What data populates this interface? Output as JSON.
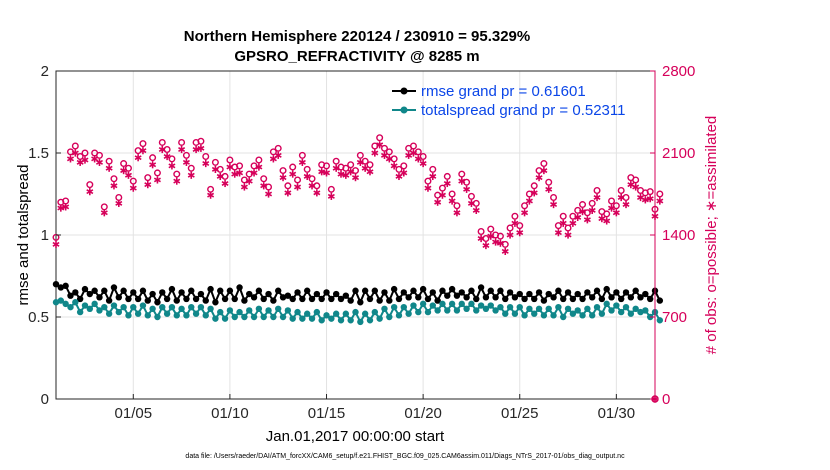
{
  "chart_data": {
    "type": "line",
    "title": "Northern Hemisphere 220124 / 230910 = 95.329%",
    "subtitle": "GPSRO_REFRACTIVITY @ 8285 m",
    "xlabel": "Jan.01,2017 00:00:00 start",
    "ylabel": "rmse and totalspread",
    "y2label": "# of obs: o=possible; ∗=assimilated",
    "xlim": [
      1,
      32
    ],
    "ylim": [
      0,
      2
    ],
    "y2lim": [
      0,
      2800
    ],
    "x_ticks": [
      5,
      10,
      15,
      20,
      25,
      30
    ],
    "x_tick_labels": [
      "01/05",
      "01/10",
      "01/15",
      "01/20",
      "01/25",
      "01/30"
    ],
    "y_ticks": [
      0,
      0.5,
      1,
      1.5,
      2
    ],
    "y_tick_labels": [
      "0",
      "0.5",
      "1",
      "1.5",
      "2"
    ],
    "y2_ticks": [
      0,
      700,
      1400,
      2100,
      2800
    ],
    "y2_tick_labels": [
      "0",
      "700",
      "1400",
      "2100",
      "2800"
    ],
    "x_start": 1.0,
    "x_step": 0.25,
    "series": [
      {
        "name": "rmse grand pr = 0.61601",
        "axis": "left",
        "color": "#000000",
        "marker": "filled-circle",
        "values": [
          0.7,
          0.68,
          0.69,
          0.63,
          0.65,
          0.61,
          0.67,
          0.64,
          0.66,
          0.62,
          0.66,
          0.6,
          0.68,
          0.62,
          0.66,
          0.61,
          0.65,
          0.61,
          0.66,
          0.6,
          0.64,
          0.59,
          0.65,
          0.61,
          0.67,
          0.6,
          0.65,
          0.61,
          0.66,
          0.61,
          0.64,
          0.6,
          0.67,
          0.59,
          0.66,
          0.61,
          0.66,
          0.61,
          0.68,
          0.6,
          0.64,
          0.62,
          0.66,
          0.61,
          0.64,
          0.6,
          0.66,
          0.62,
          0.63,
          0.61,
          0.65,
          0.61,
          0.66,
          0.61,
          0.64,
          0.61,
          0.65,
          0.61,
          0.64,
          0.61,
          0.63,
          0.6,
          0.66,
          0.59,
          0.66,
          0.61,
          0.66,
          0.6,
          0.65,
          0.6,
          0.67,
          0.61,
          0.65,
          0.62,
          0.66,
          0.62,
          0.67,
          0.61,
          0.65,
          0.6,
          0.66,
          0.63,
          0.67,
          0.63,
          0.65,
          0.62,
          0.66,
          0.61,
          0.68,
          0.62,
          0.66,
          0.62,
          0.66,
          0.61,
          0.65,
          0.62,
          0.64,
          0.61,
          0.64,
          0.61,
          0.65,
          0.6,
          0.64,
          0.62,
          0.66,
          0.61,
          0.65,
          0.61,
          0.64,
          0.61,
          0.65,
          0.62,
          0.66,
          0.61,
          0.67,
          0.62,
          0.65,
          0.61,
          0.65,
          0.62,
          0.66,
          0.62,
          0.64,
          0.61,
          0.66,
          0.6
        ]
      },
      {
        "name": "totalspread grand pr = 0.52311",
        "axis": "left",
        "color": "#10878a",
        "marker": "filled-circle",
        "values": [
          0.59,
          0.6,
          0.58,
          0.56,
          0.59,
          0.53,
          0.57,
          0.55,
          0.58,
          0.54,
          0.56,
          0.52,
          0.57,
          0.53,
          0.56,
          0.51,
          0.56,
          0.52,
          0.57,
          0.51,
          0.55,
          0.5,
          0.56,
          0.52,
          0.56,
          0.51,
          0.55,
          0.51,
          0.56,
          0.52,
          0.56,
          0.51,
          0.55,
          0.49,
          0.53,
          0.49,
          0.54,
          0.5,
          0.53,
          0.5,
          0.54,
          0.5,
          0.55,
          0.5,
          0.54,
          0.5,
          0.55,
          0.5,
          0.54,
          0.49,
          0.53,
          0.49,
          0.52,
          0.49,
          0.53,
          0.48,
          0.51,
          0.49,
          0.52,
          0.48,
          0.52,
          0.48,
          0.53,
          0.47,
          0.52,
          0.48,
          0.53,
          0.49,
          0.55,
          0.5,
          0.56,
          0.51,
          0.56,
          0.52,
          0.57,
          0.53,
          0.58,
          0.53,
          0.57,
          0.54,
          0.58,
          0.54,
          0.58,
          0.54,
          0.58,
          0.55,
          0.58,
          0.54,
          0.57,
          0.55,
          0.57,
          0.54,
          0.56,
          0.52,
          0.56,
          0.52,
          0.56,
          0.51,
          0.55,
          0.52,
          0.55,
          0.51,
          0.55,
          0.51,
          0.56,
          0.5,
          0.55,
          0.52,
          0.54,
          0.51,
          0.55,
          0.51,
          0.56,
          0.52,
          0.58,
          0.54,
          0.57,
          0.53,
          0.56,
          0.52,
          0.55,
          0.53,
          0.54,
          0.5,
          0.53,
          0.48
        ]
      },
      {
        "name": "possible",
        "axis": "right",
        "color": "#d6005a",
        "marker": "open-circle",
        "values": [
          1380,
          1680,
          1690,
          2110,
          2160,
          2070,
          2100,
          1830,
          2100,
          2080,
          1640,
          2030,
          1880,
          1720,
          2010,
          1970,
          1860,
          2120,
          2180,
          1890,
          2060,
          1930,
          2190,
          2130,
          2050,
          1920,
          2190,
          2080,
          1970,
          2190,
          2200,
          2070,
          1790,
          2020,
          1960,
          1900,
          2040,
          1980,
          1990,
          1870,
          1920,
          1990,
          2040,
          1880,
          1810,
          2110,
          2140,
          1950,
          1820,
          1980,
          1870,
          2080,
          1960,
          1880,
          1820,
          2000,
          1990,
          1790,
          2030,
          1980,
          1970,
          2000,
          1950,
          2080,
          2030,
          2000,
          2160,
          2230,
          2140,
          2110,
          2050,
          1960,
          1990,
          2140,
          2160,
          2110,
          2070,
          1860,
          1960,
          1740,
          1800,
          1900,
          1750,
          1650,
          1920,
          1850,
          1730,
          1670,
          1430,
          1370,
          1450,
          1400,
          1390,
          1320,
          1460,
          1560,
          1480,
          1650,
          1750,
          1820,
          1950,
          2010,
          1850,
          1720,
          1480,
          1560,
          1460,
          1560,
          1610,
          1660,
          1590,
          1670,
          1780,
          1600,
          1580,
          1690,
          1650,
          1780,
          1720,
          1890,
          1870,
          1780,
          1760,
          1770,
          1620,
          1750
        ]
      },
      {
        "name": "assimilated",
        "axis": "right",
        "color": "#d6005a",
        "marker": "star",
        "values": [
          1320,
          1630,
          1640,
          2050,
          2100,
          2020,
          2040,
          1770,
          2050,
          2020,
          1590,
          1970,
          1820,
          1670,
          1950,
          1910,
          1800,
          2060,
          2120,
          1830,
          2000,
          1870,
          2130,
          2070,
          1990,
          1860,
          2130,
          2020,
          1910,
          2130,
          2140,
          2010,
          1740,
          1960,
          1900,
          1840,
          1980,
          1920,
          1930,
          1810,
          1860,
          1930,
          1980,
          1820,
          1750,
          2050,
          2080,
          1890,
          1760,
          1920,
          1810,
          2020,
          1900,
          1820,
          1760,
          1940,
          1930,
          1730,
          1970,
          1920,
          1910,
          1940,
          1890,
          2020,
          1970,
          1940,
          2100,
          2170,
          2080,
          2050,
          1990,
          1900,
          1930,
          2080,
          2100,
          2050,
          2010,
          1800,
          1900,
          1680,
          1740,
          1840,
          1690,
          1590,
          1860,
          1790,
          1670,
          1610,
          1370,
          1310,
          1390,
          1340,
          1330,
          1260,
          1400,
          1500,
          1420,
          1590,
          1690,
          1760,
          1890,
          1950,
          1790,
          1660,
          1420,
          1500,
          1400,
          1500,
          1550,
          1600,
          1530,
          1610,
          1720,
          1540,
          1520,
          1630,
          1590,
          1720,
          1660,
          1830,
          1810,
          1720,
          1700,
          1710,
          1560,
          1690
        ]
      }
    ],
    "legend": [
      "rmse grand pr = 0.61601",
      "totalspread grand pr = 0.52311"
    ],
    "legend_location": "top-right",
    "grid": true,
    "footnote": "data file: /Users/raeder/DAI/ATM_forcXX/CAM6_setup/f.e21.FHIST_BGC.f09_025.CAM6assim.011/Diags_NTrS_2017-01/obs_diag_output.nc"
  }
}
